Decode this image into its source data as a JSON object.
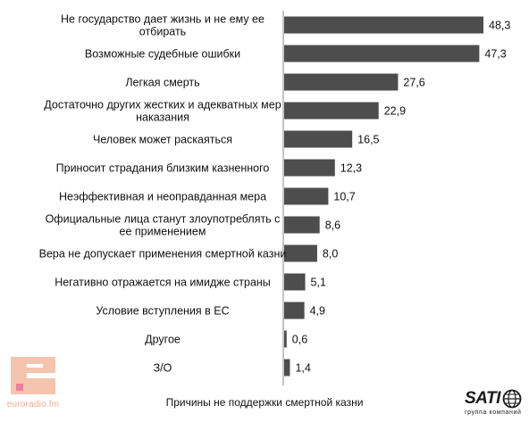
{
  "chart_data": {
    "type": "bar",
    "orientation": "horizontal",
    "categories": [
      [
        "Не государство дает жизнь и не ему ее",
        "отбирать"
      ],
      [
        "Возможные судебные ошибки"
      ],
      [
        "Легкая смерть"
      ],
      [
        "Достаточно других жестких и адекватных мер",
        "наказания"
      ],
      [
        "Человек может раскаяться"
      ],
      [
        "Приносит страдания близким казненного"
      ],
      [
        "Неэффективная и неоправданная мера"
      ],
      [
        "Официальные лица станут злоупотреблять с",
        "ее применением"
      ],
      [
        "Вера не допускает применения смертной казни"
      ],
      [
        "Негативно отражается на имидже страны"
      ],
      [
        "Условие вступления в ЕС"
      ],
      [
        "Другое"
      ],
      [
        "З/О"
      ]
    ],
    "values": [
      48.3,
      47.3,
      27.6,
      22.9,
      16.5,
      12.3,
      10.7,
      8.6,
      8.0,
      5.1,
      4.9,
      0.6,
      1.4
    ],
    "value_labels": [
      "48,3",
      "47,3",
      "27,6",
      "22,9",
      "16,5",
      "12,3",
      "10,7",
      "8,6",
      "8,0",
      "5,1",
      "4,9",
      "0,6",
      "1,4"
    ],
    "xlim": [
      0,
      50
    ],
    "grid": false,
    "legend": "none",
    "xlabel": "Причины не поддержки смертной казни",
    "bar_color": "#4d4d4d"
  },
  "logos": {
    "euroradio_text": "euroradio.fm",
    "euroradio_color": "#f0a98a",
    "sati_word": "SATI",
    "sati_sub": "группа компаний"
  }
}
